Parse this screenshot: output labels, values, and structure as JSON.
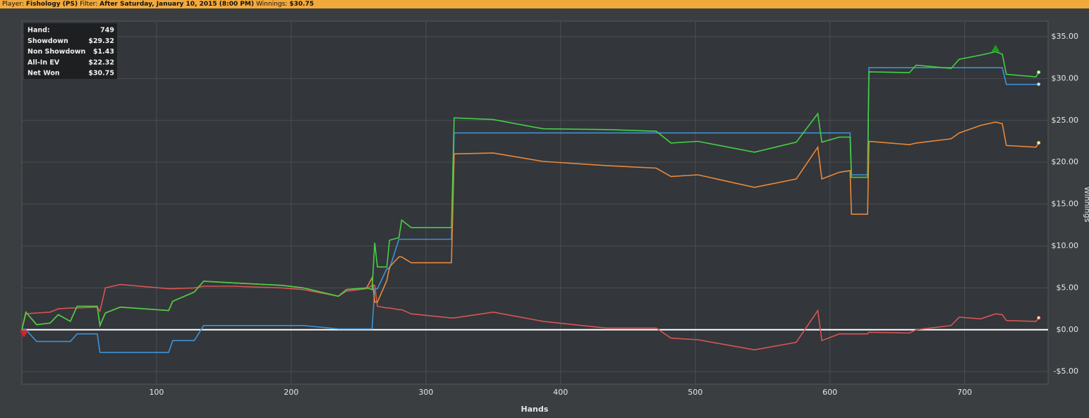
{
  "header": {
    "player_label": "Player:",
    "player": "Fishology (PS)",
    "filter_label": "Filter:",
    "filter": "After Saturday, January 10, 2015 (8:00 PM)",
    "winnings_label": "Winnings:",
    "winnings": "$30.75"
  },
  "chart_data": {
    "type": "line",
    "x_label": "Hands",
    "y_label": "Winnings",
    "hand_label": "Hand:",
    "hand": 749,
    "xlim": [
      0,
      762
    ],
    "xticks": [
      100,
      200,
      300,
      400,
      500,
      600,
      700
    ],
    "ylim": [
      -6.5,
      36.85
    ],
    "yticks": [
      {
        "value": -5,
        "label": "-$5.00"
      },
      {
        "value": 0,
        "label": "$0.00"
      },
      {
        "value": 5,
        "label": "$5.00"
      },
      {
        "value": 10,
        "label": "$10.00"
      },
      {
        "value": 15,
        "label": "$15.00"
      },
      {
        "value": 20,
        "label": "$20.00"
      },
      {
        "value": 25,
        "label": "$25.00"
      },
      {
        "value": 30,
        "label": "$30.00"
      },
      {
        "value": 35,
        "label": "$35.00"
      }
    ],
    "grid": true,
    "x": [
      0,
      3,
      11,
      21,
      27,
      36,
      41,
      56,
      58,
      62,
      73,
      109,
      112,
      128,
      135,
      157,
      193,
      209,
      235,
      241,
      256,
      260,
      262,
      264,
      271,
      273,
      280,
      282,
      289,
      319,
      321,
      350,
      387,
      434,
      471,
      482,
      502,
      544,
      575,
      591,
      594,
      607,
      615,
      616,
      628,
      629,
      659,
      664,
      690,
      696,
      712,
      723,
      728,
      731,
      753,
      755
    ],
    "series": [
      {
        "name": "Showdown",
        "color": "#3d93d6",
        "total_label": "$29.32",
        "values": [
          0,
          0,
          -1.4,
          -1.4,
          -1.4,
          -1.4,
          -0.5,
          -0.5,
          -2.7,
          -2.7,
          -2.7,
          -2.7,
          -1.3,
          -1.3,
          0.5,
          0.5,
          0.5,
          0.5,
          0.1,
          0.1,
          0.1,
          0.1,
          4.9,
          4.9,
          7.3,
          7.3,
          10.8,
          10.8,
          10.8,
          10.8,
          23.5,
          23.5,
          23.5,
          23.5,
          23.5,
          23.5,
          23.5,
          23.5,
          23.5,
          23.5,
          23.5,
          23.5,
          23.5,
          18.5,
          18.5,
          31.3,
          31.3,
          31.3,
          31.3,
          31.3,
          31.3,
          31.3,
          31.3,
          29.3,
          29.3,
          29.32
        ]
      },
      {
        "name": "Non Showdown",
        "color": "#d65555",
        "total_label": "$1.43",
        "values": [
          0,
          1.9,
          2.0,
          2.1,
          2.5,
          2.6,
          2.6,
          2.7,
          2.2,
          5.0,
          5.4,
          4.9,
          4.9,
          5.0,
          5.2,
          5.2,
          5.0,
          4.8,
          4.0,
          4.6,
          4.9,
          5.3,
          5.3,
          2.8,
          2.6,
          2.6,
          2.4,
          2.4,
          1.9,
          1.4,
          1.4,
          2.1,
          1.0,
          0.2,
          0.2,
          -1.0,
          -1.2,
          -2.4,
          -1.5,
          2.3,
          -1.3,
          -0.5,
          -0.5,
          -0.5,
          -0.5,
          -0.3,
          -0.4,
          0,
          0.5,
          1.5,
          1.3,
          1.9,
          1.8,
          1.1,
          1.0,
          1.43
        ]
      },
      {
        "name": "All-In EV",
        "color": "#e8883a",
        "total_label": "$22.32",
        "values": [
          0,
          2.1,
          0.6,
          0.8,
          1.8,
          1.0,
          2.8,
          2.8,
          0.5,
          2.0,
          2.7,
          2.3,
          3.4,
          4.5,
          5.8,
          5.6,
          5.3,
          5.0,
          4.0,
          4.8,
          5.0,
          6.2,
          3.3,
          3.3,
          5.9,
          7.5,
          8.7,
          8.7,
          8.0,
          8.0,
          21.0,
          21.1,
          20.1,
          19.6,
          19.3,
          18.3,
          18.5,
          17.0,
          18.0,
          21.8,
          18.0,
          18.8,
          19.0,
          13.8,
          13.8,
          22.5,
          22.1,
          22.3,
          22.8,
          23.5,
          24.4,
          24.8,
          24.6,
          22.0,
          21.8,
          22.32
        ]
      },
      {
        "name": "Net Won",
        "color": "#45cf45",
        "total_label": "$30.75",
        "values": [
          0,
          2.1,
          0.6,
          0.8,
          1.8,
          1.0,
          2.8,
          2.8,
          0.5,
          2.0,
          2.7,
          2.3,
          3.4,
          4.5,
          5.8,
          5.6,
          5.3,
          5.0,
          4.0,
          4.8,
          5.0,
          4.8,
          10.4,
          7.5,
          7.5,
          10.7,
          11.0,
          13.1,
          12.2,
          12.2,
          25.3,
          25.1,
          24.0,
          23.9,
          23.7,
          22.3,
          22.5,
          21.2,
          22.4,
          25.8,
          22.4,
          23.0,
          23.0,
          18.2,
          18.2,
          30.8,
          30.7,
          31.6,
          31.2,
          32.3,
          32.8,
          33.2,
          32.9,
          30.5,
          30.2,
          30.75
        ]
      }
    ]
  }
}
